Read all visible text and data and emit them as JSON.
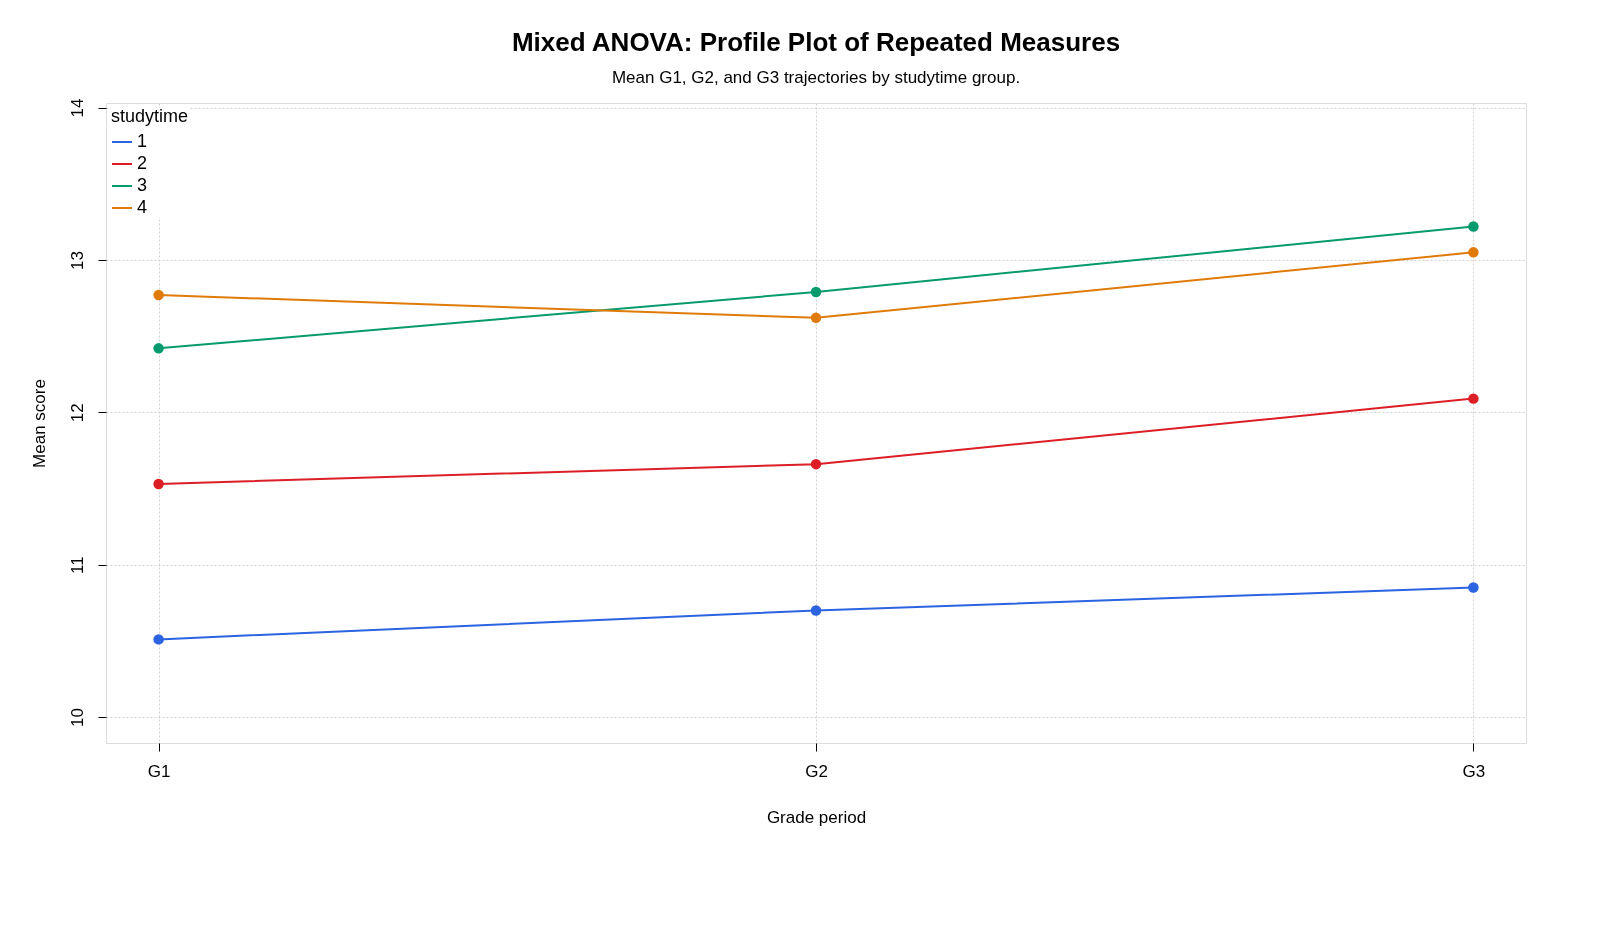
{
  "chart_data": {
    "type": "line",
    "title": "Mixed ANOVA: Profile Plot of Repeated Measures",
    "subtitle": "Mean G1, G2, and G3 trajectories by studytime group.",
    "xlabel": "Grade period",
    "ylabel": "Mean score",
    "legend_title": "studytime",
    "categories": [
      "G1",
      "G2",
      "G3"
    ],
    "series": [
      {
        "name": "1",
        "color": "#2b63e0",
        "values": [
          10.51,
          10.7,
          10.85
        ]
      },
      {
        "name": "2",
        "color": "#dc1f26",
        "values": [
          11.53,
          11.66,
          12.09
        ]
      },
      {
        "name": "3",
        "color": "#079a6c",
        "values": [
          12.42,
          12.79,
          13.22
        ]
      },
      {
        "name": "4",
        "color": "#e07b0a",
        "values": [
          12.77,
          12.62,
          13.05
        ]
      }
    ],
    "ylim": [
      9.83,
      14.03
    ],
    "yticks": [
      10,
      11,
      12,
      13,
      14
    ],
    "grid": true,
    "legend": "top left",
    "marker": "circle",
    "line_style": "solid"
  }
}
